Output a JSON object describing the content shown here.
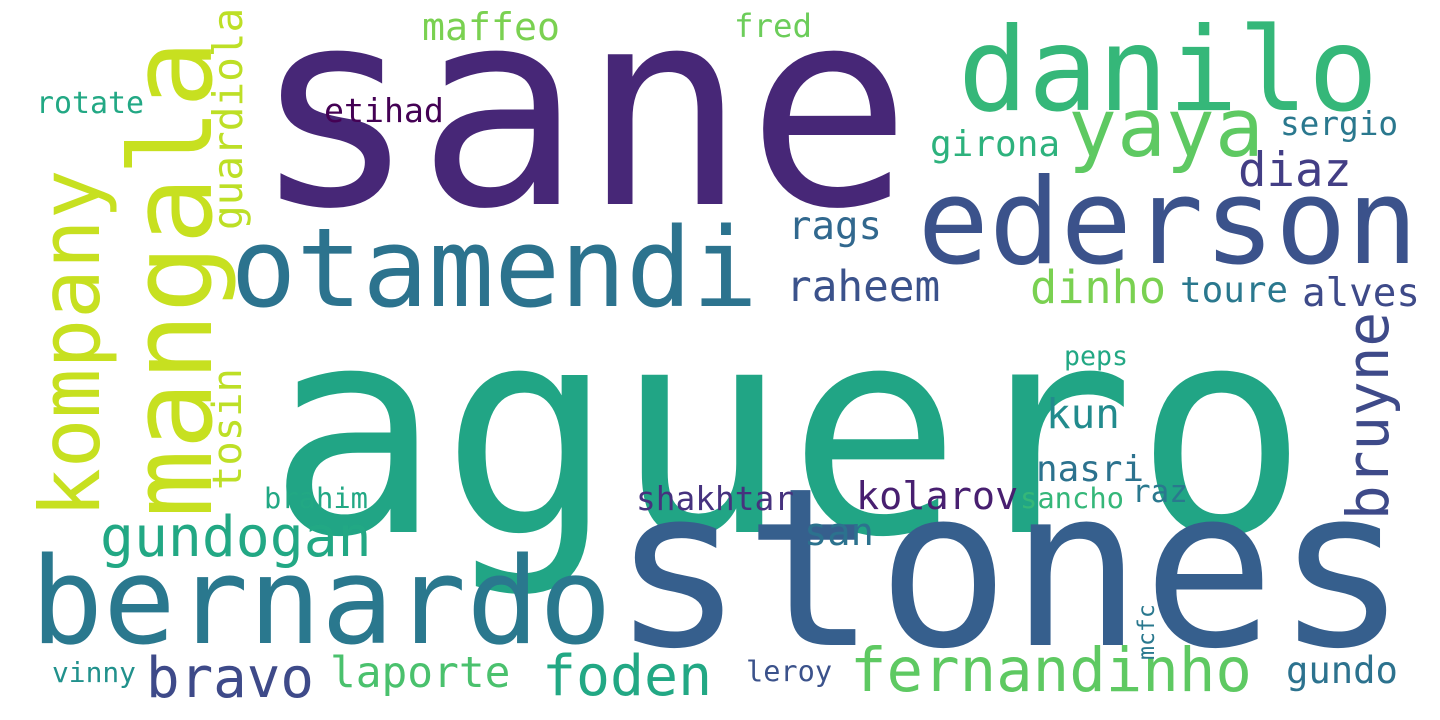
{
  "words": [
    {
      "text": "aguero",
      "color": "#21a585",
      "orientation": "horizontal"
    },
    {
      "text": "sane",
      "color": "#472777",
      "orientation": "horizontal"
    },
    {
      "text": "stones",
      "color": "#365f8d",
      "orientation": "horizontal"
    },
    {
      "text": "danilo",
      "color": "#35b779",
      "orientation": "horizontal"
    },
    {
      "text": "ederson",
      "color": "#3b528b",
      "orientation": "horizontal"
    },
    {
      "text": "otamendi",
      "color": "#2c738e",
      "orientation": "horizontal"
    },
    {
      "text": "mangala",
      "color": "#c7e020",
      "orientation": "vertical"
    },
    {
      "text": "bernardo",
      "color": "#2a788e",
      "orientation": "horizontal"
    },
    {
      "text": "kompany",
      "color": "#c7e020",
      "orientation": "vertical"
    },
    {
      "text": "yaya",
      "color": "#5ec962",
      "orientation": "horizontal"
    },
    {
      "text": "fernandinho",
      "color": "#5ec962",
      "orientation": "horizontal"
    },
    {
      "text": "gundogan",
      "color": "#22a884",
      "orientation": "horizontal"
    },
    {
      "text": "bravo",
      "color": "#3e4a89",
      "orientation": "horizontal"
    },
    {
      "text": "foden",
      "color": "#22a884",
      "orientation": "horizontal"
    },
    {
      "text": "bruyne",
      "color": "#3e4a89",
      "orientation": "vertical"
    },
    {
      "text": "guardiola",
      "color": "#bddf26",
      "orientation": "vertical"
    },
    {
      "text": "diaz",
      "color": "#433e85",
      "orientation": "horizontal"
    },
    {
      "text": "raheem",
      "color": "#3b528b",
      "orientation": "horizontal"
    },
    {
      "text": "dinho",
      "color": "#7ad151",
      "orientation": "horizontal"
    },
    {
      "text": "alves",
      "color": "#3e4a89",
      "orientation": "horizontal"
    },
    {
      "text": "laporte",
      "color": "#4ac16d",
      "orientation": "horizontal"
    },
    {
      "text": "tosin",
      "color": "#bddf26",
      "orientation": "vertical"
    },
    {
      "text": "maffeo",
      "color": "#7ad151",
      "orientation": "horizontal"
    },
    {
      "text": "rags",
      "color": "#31688e",
      "orientation": "horizontal"
    },
    {
      "text": "kun",
      "color": "#228b8d",
      "orientation": "horizontal"
    },
    {
      "text": "toure",
      "color": "#2a788e",
      "orientation": "horizontal"
    },
    {
      "text": "girona",
      "color": "#2db27d",
      "orientation": "horizontal"
    },
    {
      "text": "sergio",
      "color": "#2a788e",
      "orientation": "horizontal"
    },
    {
      "text": "nasri",
      "color": "#2c728e",
      "orientation": "horizontal"
    },
    {
      "text": "san",
      "color": "#2c728e",
      "orientation": "horizontal"
    },
    {
      "text": "kolarov",
      "color": "#481f70",
      "orientation": "horizontal"
    },
    {
      "text": "gundo",
      "color": "#2c728e",
      "orientation": "horizontal"
    },
    {
      "text": "fred",
      "color": "#6ccd5a",
      "orientation": "horizontal"
    },
    {
      "text": "etihad",
      "color": "#440154",
      "orientation": "horizontal"
    },
    {
      "text": "rotate",
      "color": "#22a884",
      "orientation": "horizontal"
    },
    {
      "text": "brahim",
      "color": "#22a884",
      "orientation": "horizontal"
    },
    {
      "text": "shakhtar",
      "color": "#46327e",
      "orientation": "horizontal"
    },
    {
      "text": "sancho",
      "color": "#35b779",
      "orientation": "horizontal"
    },
    {
      "text": "raz",
      "color": "#2a788e",
      "orientation": "horizontal"
    },
    {
      "text": "peps",
      "color": "#22a884",
      "orientation": "horizontal"
    },
    {
      "text": "mcfc",
      "color": "#2a788e",
      "orientation": "vertical"
    },
    {
      "text": "leroy",
      "color": "#3b528b",
      "orientation": "horizontal"
    },
    {
      "text": "vinny",
      "color": "#21918c",
      "orientation": "horizontal"
    }
  ]
}
